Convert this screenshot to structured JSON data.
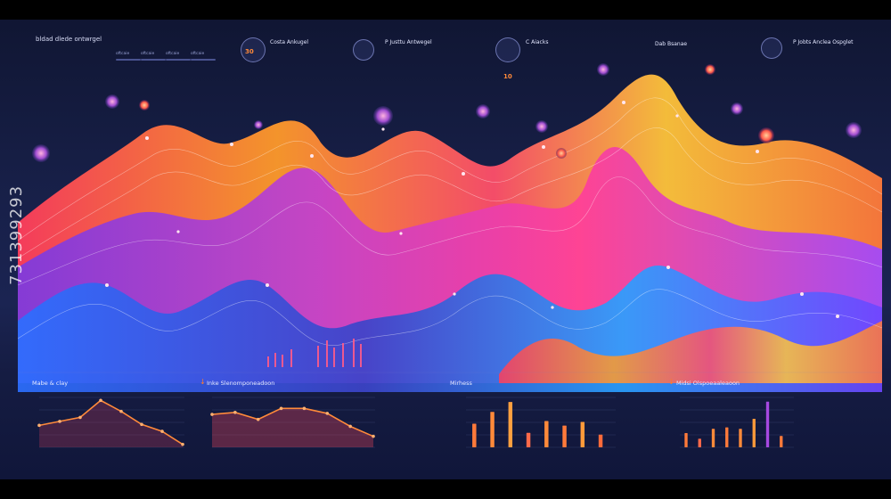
{
  "watermark": "731399293",
  "sidebar": {
    "title": "bldad dlede ontwrgel",
    "rows": [
      "",
      "",
      "",
      "",
      "",
      "",
      "",
      "",
      "",
      ""
    ]
  },
  "chips": [
    "oftcaie",
    "oftcaie",
    "oftcaie",
    "oftcaie"
  ],
  "stats": [
    {
      "badge": "30",
      "title": "Costa Ankugel"
    },
    {
      "badge": "",
      "title": "P Justtu Antwegel"
    },
    {
      "badge": "10",
      "title": "C Aiacks"
    },
    {
      "badge": "",
      "title": "Dab Bsanae"
    },
    {
      "badge": "",
      "title": "P Jobts Anclea Ospglet"
    }
  ],
  "colors": {
    "orange": "#ff8a3a",
    "magenta": "#e040c8",
    "purple": "#7a3bd9",
    "blue": "#2f7bff",
    "bg": "#171f47"
  },
  "chart_data": [
    {
      "type": "line",
      "title": "Mabe & clay",
      "x": [
        0,
        1,
        2,
        3,
        4,
        5,
        6,
        7
      ],
      "series": [
        {
          "values": [
            2.2,
            2.6,
            3.0,
            4.7,
            3.6,
            2.3,
            1.6,
            0.3
          ]
        }
      ],
      "ylim": [
        0,
        5
      ]
    },
    {
      "type": "area",
      "title": "Inke Slenomponeadoon",
      "x": [
        0,
        1,
        2,
        3,
        4,
        5,
        6,
        7
      ],
      "series": [
        {
          "values": [
            3.3,
            3.5,
            2.8,
            3.9,
            3.9,
            3.4,
            2.1,
            1.1
          ]
        }
      ],
      "ylim": [
        0,
        5
      ]
    },
    {
      "type": "bar",
      "title": "Mirhess",
      "categories": [
        "",
        "",
        "",
        "",
        "",
        "",
        "",
        ""
      ],
      "series": [
        {
          "values": [
            2.6,
            3.9,
            5.0,
            1.6,
            2.9,
            2.4,
            2.8,
            1.4
          ]
        }
      ],
      "ylim": [
        0,
        5.5
      ]
    },
    {
      "type": "bar",
      "title": "Midsi Olspoeaaleaoon",
      "categories": [
        "",
        "",
        "",
        "",
        "",
        "",
        "",
        ""
      ],
      "series": [
        {
          "values": [
            1.0,
            0.6,
            1.3,
            1.4,
            1.3,
            2.0,
            3.2,
            0.8
          ]
        }
      ],
      "ylim": [
        0,
        3.5
      ]
    }
  ]
}
